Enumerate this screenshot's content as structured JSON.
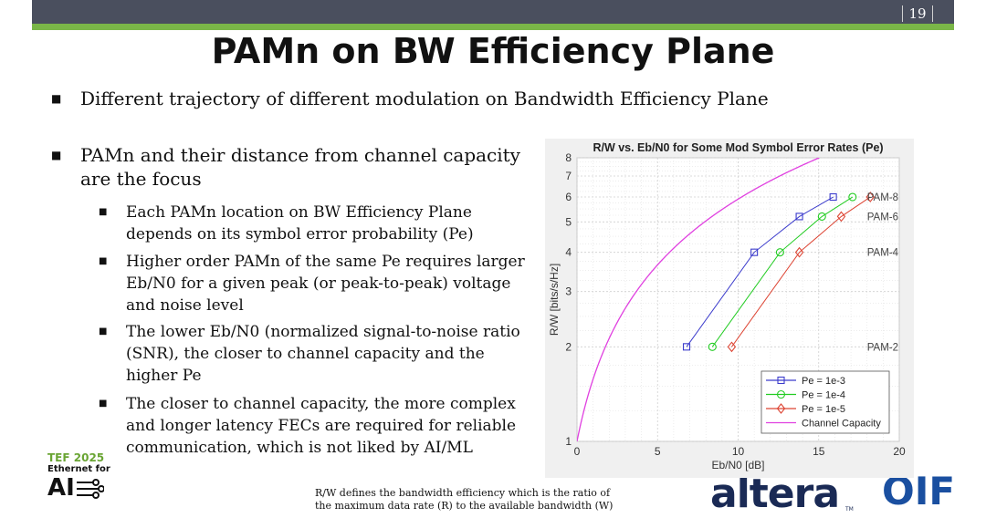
{
  "slide": {
    "number": "19",
    "title": "PAMn on BW Efficiency Plane"
  },
  "bullets": {
    "b1": "Different trajectory of different modulation on Bandwidth Efficiency Plane",
    "b2": "PAMn and their distance from channel capacity are the focus",
    "sub": [
      "Each PAMn location on BW Efficiency Plane depends on its symbol error probability (Pe)",
      "Higher order PAMn of the same Pe requires larger Eb/N0 for a given peak (or peak-to-peak) voltage and noise level",
      "The lower Eb/N0 (normalized signal-to-noise ratio (SNR), the closer to channel capacity and the higher Pe",
      "The closer to channel capacity, the more complex and longer latency FECs are required for reliable communication, which is not liked by AI/ML"
    ]
  },
  "footnote": {
    "line1": "R/W defines the bandwidth efficiency which is the ratio of",
    "line2": "the maximum data rate (R) to the available bandwidth (W)"
  },
  "logos": {
    "tef_line1": "TEF 2025",
    "tef_line2": "Ethernet for",
    "tef_line3": "AI",
    "altera": "altera",
    "altera_tm": "TM",
    "oif": "OIF"
  },
  "chart_data": {
    "type": "line",
    "title": "R/W vs. Eb/N0 for Some Mod Symbol Error Rates (Pe)",
    "xlabel": "Eb/N0 [dB]",
    "ylabel": "R/W [bits/s/Hz]",
    "xlim": [
      0,
      20
    ],
    "ylim": [
      1,
      8
    ],
    "yscale": "log",
    "x_ticks": [
      0,
      5,
      10,
      15,
      20
    ],
    "y_ticks": [
      1,
      2,
      3,
      4,
      5,
      6,
      7,
      8
    ],
    "grid": true,
    "legend_position": "bottom-right",
    "series": [
      {
        "name": "Pe = 1e-3",
        "color": "#3c3ccc",
        "marker": "square",
        "x": [
          6.8,
          11.0,
          13.8,
          15.9
        ],
        "y": [
          2,
          4,
          5.2,
          6
        ]
      },
      {
        "name": "Pe = 1e-4",
        "color": "#22cc22",
        "marker": "circle",
        "x": [
          8.4,
          12.6,
          15.2,
          17.1
        ],
        "y": [
          2,
          4,
          5.2,
          6
        ]
      },
      {
        "name": "Pe = 1e-5",
        "color": "#dd4433",
        "marker": "diamond",
        "x": [
          9.6,
          13.8,
          16.4,
          18.2
        ],
        "y": [
          2,
          4,
          5.2,
          6
        ]
      },
      {
        "name": "Channel Capacity",
        "color": "#e040e0",
        "marker": "none",
        "function": "Eb/N0 = 10*log10((2^r - 1)/r)",
        "y_range": [
          1,
          8
        ]
      }
    ],
    "annotations": [
      {
        "text": "PAM-8",
        "y": 6
      },
      {
        "text": "PAM-6",
        "y": 5.2
      },
      {
        "text": "PAM-4",
        "y": 4
      },
      {
        "text": "PAM-2",
        "y": 2
      }
    ]
  }
}
